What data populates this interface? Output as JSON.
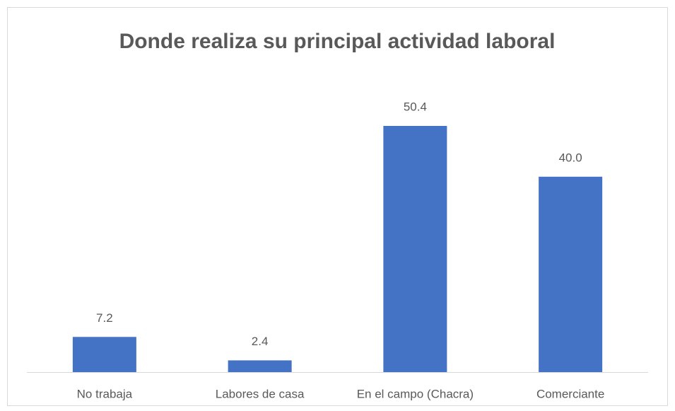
{
  "chart_data": {
    "type": "bar",
    "title": "Donde realiza su principal actividad laboral",
    "categories": [
      "No trabaja",
      "Labores de casa",
      "En el campo (Chacra)",
      "Comerciante"
    ],
    "values": [
      7.2,
      2.4,
      50.4,
      40.0
    ],
    "value_labels": [
      "7.2",
      "2.4",
      "50.4",
      "40.0"
    ],
    "color": "#4472c4"
  }
}
